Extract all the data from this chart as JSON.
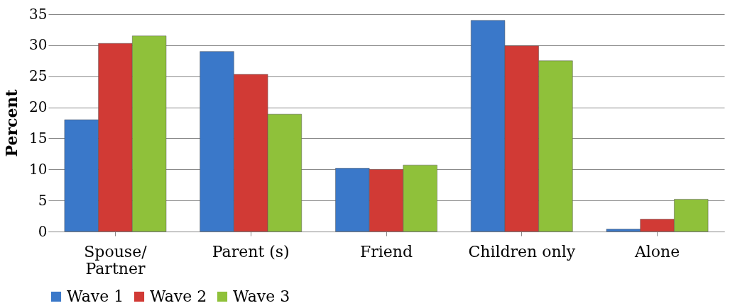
{
  "chart_data": {
    "type": "bar",
    "ylabel": "Percent",
    "categories": [
      "Spouse/ Partner",
      "Parent (s)",
      "Friend",
      "Children only",
      "Alone"
    ],
    "series": [
      {
        "name": "Wave 1",
        "color": "#3a78c9",
        "values": [
          18.0,
          29.0,
          10.2,
          34.0,
          0.4
        ]
      },
      {
        "name": "Wave 2",
        "color": "#d13a35",
        "values": [
          30.3,
          25.3,
          10.0,
          29.9,
          2.0
        ]
      },
      {
        "name": "Wave 3",
        "color": "#8fc13a",
        "values": [
          31.5,
          18.9,
          10.7,
          27.5,
          5.2
        ]
      }
    ],
    "ylim": [
      0,
      35
    ],
    "yticks": [
      0,
      5,
      10,
      15,
      20,
      25,
      30,
      35
    ],
    "grid": "y",
    "legend": "bottom"
  }
}
